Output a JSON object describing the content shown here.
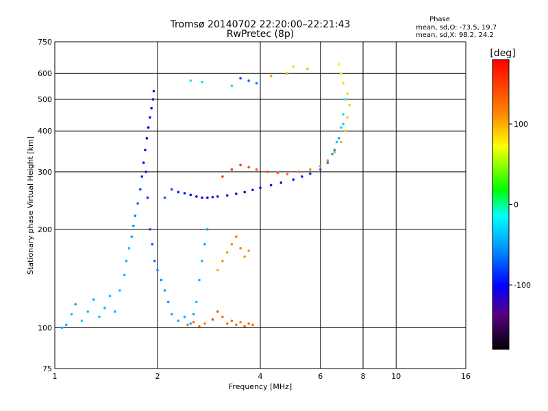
{
  "header": {
    "title_line1": "Tromsø 20140702 22:20:00–22:21:43",
    "title_line2": "RwPretec (8p)",
    "phase_label": "Phase",
    "phase_o": "mean, sd,O: -73.5, 19.7",
    "phase_x": "mean, sd,X:  98.2, 24.2"
  },
  "colorbar": {
    "unit_label": "[deg]",
    "ticks": [
      {
        "value": 100,
        "label": "100"
      },
      {
        "value": 0,
        "label": "0"
      },
      {
        "value": -100,
        "label": "-100"
      }
    ],
    "range": [
      -180,
      180
    ]
  },
  "chart_data": {
    "type": "scatter",
    "title": "Tromsø 20140702 22:20:00–22:21:43",
    "subtitle": "RwPretec (8p)",
    "xlabel": "Frequency [MHz]",
    "ylabel": "Stationary phase Virtual Height [km]",
    "xscale": "log",
    "yscale": "log",
    "xlim": [
      1,
      16
    ],
    "ylim": [
      75,
      750
    ],
    "x_ticks": [
      1,
      2,
      4,
      6,
      8,
      10,
      16
    ],
    "y_ticks": [
      75,
      100,
      200,
      300,
      400,
      500,
      600,
      750
    ],
    "grid_x": [
      2,
      4,
      6,
      8,
      10
    ],
    "grid_y": [
      100,
      200,
      300,
      400,
      500,
      600
    ],
    "color_scale": "phase [deg]",
    "series": [
      {
        "values": [
          [
            1.05,
            100,
            -40
          ],
          [
            1.08,
            102,
            -45
          ],
          [
            1.12,
            110,
            -35
          ],
          [
            1.15,
            118,
            -50
          ],
          [
            1.2,
            105,
            -30
          ],
          [
            1.25,
            112,
            -40
          ],
          [
            1.3,
            122,
            -45
          ],
          [
            1.35,
            108,
            -35
          ],
          [
            1.4,
            115,
            -40
          ],
          [
            1.45,
            125,
            -38
          ],
          [
            1.5,
            112,
            -42
          ],
          [
            1.55,
            130,
            -36
          ],
          [
            1.6,
            145,
            -40
          ],
          [
            1.62,
            160,
            -45
          ],
          [
            1.65,
            175,
            -42
          ],
          [
            1.68,
            190,
            -48
          ],
          [
            1.7,
            205,
            -55
          ],
          [
            1.72,
            220,
            -60
          ],
          [
            1.75,
            240,
            -70
          ],
          [
            1.78,
            265,
            -80
          ],
          [
            1.8,
            290,
            -90
          ],
          [
            1.82,
            320,
            -100
          ],
          [
            1.84,
            350,
            -105
          ],
          [
            1.86,
            380,
            -110
          ],
          [
            1.88,
            410,
            -108
          ],
          [
            1.9,
            440,
            -112
          ],
          [
            1.92,
            470,
            -110
          ],
          [
            1.94,
            500,
            -115
          ],
          [
            1.95,
            530,
            -105
          ],
          [
            1.85,
            300,
            -95
          ],
          [
            1.87,
            250,
            -85
          ],
          [
            1.9,
            200,
            -75
          ],
          [
            1.93,
            180,
            -70
          ],
          [
            1.96,
            160,
            -65
          ],
          [
            2.0,
            150,
            -60
          ],
          [
            2.05,
            140,
            -55
          ],
          [
            2.1,
            130,
            -50
          ],
          [
            2.15,
            120,
            -55
          ],
          [
            2.2,
            110,
            -45
          ],
          [
            2.3,
            105,
            -40
          ],
          [
            2.4,
            108,
            -42
          ],
          [
            2.5,
            103,
            -40
          ],
          [
            2.55,
            110,
            -45
          ],
          [
            2.6,
            120,
            -38
          ],
          [
            2.65,
            140,
            -40
          ],
          [
            2.7,
            160,
            -42
          ],
          [
            2.75,
            180,
            -45
          ],
          [
            2.8,
            200,
            -48
          ],
          [
            2.1,
            250,
            -70
          ],
          [
            2.2,
            265,
            -80
          ],
          [
            2.3,
            260,
            -90
          ],
          [
            2.4,
            258,
            -95
          ],
          [
            2.5,
            255,
            -100
          ],
          [
            2.6,
            252,
            -105
          ],
          [
            2.7,
            250,
            -108
          ],
          [
            2.8,
            250,
            -110
          ],
          [
            2.9,
            251,
            -115
          ],
          [
            3.0,
            252,
            -120
          ],
          [
            3.2,
            254,
            -118
          ],
          [
            3.4,
            257,
            -115
          ],
          [
            3.6,
            260,
            -112
          ],
          [
            3.8,
            264,
            -110
          ],
          [
            4.0,
            268,
            -108
          ],
          [
            4.3,
            273,
            -105
          ],
          [
            4.6,
            278,
            -100
          ],
          [
            5.0,
            284,
            -95
          ],
          [
            5.3,
            290,
            -90
          ],
          [
            5.6,
            296,
            -85
          ],
          [
            6.0,
            305,
            -70
          ],
          [
            6.3,
            320,
            -60
          ],
          [
            6.5,
            340,
            -50
          ],
          [
            6.7,
            370,
            -40
          ],
          [
            6.9,
            410,
            -30
          ],
          [
            7.0,
            450,
            -20
          ],
          [
            7.1,
            500,
            -10
          ],
          [
            7.0,
            420,
            -35
          ],
          [
            6.8,
            380,
            -45
          ],
          [
            6.6,
            350,
            -55
          ]
        ]
      },
      {
        "values": [
          [
            2.45,
            102,
            120
          ],
          [
            2.55,
            104,
            130
          ],
          [
            2.65,
            101,
            125
          ],
          [
            2.75,
            103,
            118
          ],
          [
            2.9,
            106,
            140
          ],
          [
            3.0,
            112,
            135
          ],
          [
            3.1,
            108,
            128
          ],
          [
            3.2,
            103,
            122
          ],
          [
            3.3,
            105,
            130
          ],
          [
            3.4,
            102,
            125
          ],
          [
            3.5,
            104,
            120
          ],
          [
            3.6,
            101,
            128
          ],
          [
            3.7,
            103,
            125
          ],
          [
            3.8,
            102,
            130
          ],
          [
            3.0,
            150,
            100
          ],
          [
            3.1,
            160,
            110
          ],
          [
            3.2,
            170,
            105
          ],
          [
            3.3,
            180,
            115
          ],
          [
            3.4,
            190,
            120
          ],
          [
            3.5,
            175,
            118
          ],
          [
            3.6,
            165,
            112
          ],
          [
            3.7,
            172,
            108
          ],
          [
            3.1,
            290,
            150
          ],
          [
            3.3,
            305,
            160
          ],
          [
            3.5,
            315,
            155
          ],
          [
            3.7,
            310,
            150
          ],
          [
            3.9,
            305,
            145
          ],
          [
            4.2,
            300,
            140
          ],
          [
            4.5,
            298,
            135
          ],
          [
            4.8,
            295,
            130
          ],
          [
            5.2,
            300,
            125
          ],
          [
            5.6,
            305,
            120
          ],
          [
            6.0,
            312,
            115
          ],
          [
            6.3,
            325,
            110
          ],
          [
            6.6,
            345,
            105
          ],
          [
            6.9,
            370,
            100
          ],
          [
            7.1,
            400,
            95
          ],
          [
            7.2,
            440,
            92
          ],
          [
            7.3,
            480,
            90
          ],
          [
            7.2,
            520,
            88
          ],
          [
            7.0,
            560,
            85
          ],
          [
            6.9,
            600,
            80
          ],
          [
            6.8,
            640,
            78
          ],
          [
            5.0,
            630,
            90
          ],
          [
            5.5,
            620,
            95
          ],
          [
            4.3,
            590,
            110
          ],
          [
            4.8,
            600,
            100
          ],
          [
            3.5,
            580,
            -80
          ],
          [
            3.7,
            570,
            -70
          ],
          [
            3.9,
            560,
            -60
          ],
          [
            2.5,
            570,
            -20
          ],
          [
            2.7,
            565,
            -25
          ],
          [
            3.3,
            550,
            -30
          ]
        ]
      }
    ]
  }
}
